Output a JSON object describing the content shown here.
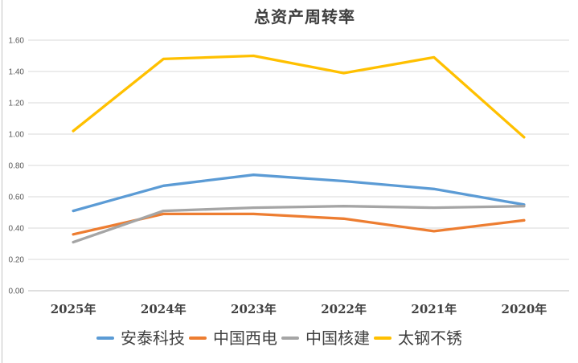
{
  "chart_data": {
    "type": "line",
    "title": "总资产周转率",
    "categories": [
      "2025年",
      "2024年",
      "2023年",
      "2022年",
      "2021年",
      "2020年"
    ],
    "series": [
      {
        "name": "安泰科技",
        "color": "#5B9BD5",
        "values": [
          0.51,
          0.67,
          0.74,
          0.7,
          0.65,
          0.55
        ]
      },
      {
        "name": "中国西电",
        "color": "#ED7D31",
        "values": [
          0.36,
          0.49,
          0.49,
          0.46,
          0.38,
          0.45
        ]
      },
      {
        "name": "中国核建",
        "color": "#A5A5A5",
        "values": [
          0.31,
          0.51,
          0.53,
          0.54,
          0.53,
          0.54
        ]
      },
      {
        "name": "太钢不锈",
        "color": "#FFC000",
        "values": [
          1.02,
          1.48,
          1.5,
          1.39,
          1.49,
          0.98
        ]
      }
    ],
    "ylim": [
      0,
      1.6
    ],
    "ytick_labels": [
      "0.00",
      "0.20",
      "0.40",
      "0.60",
      "0.80",
      "1.00",
      "1.20",
      "1.40",
      "1.60"
    ],
    "grid": true,
    "legend_position": "bottom",
    "colors": {
      "gridline": "#D9D9D9",
      "axis_line": "#BFBFBF",
      "ytick_text": "#595959",
      "xtick_text": "#404040",
      "title_text": "#3F3F3F"
    }
  }
}
